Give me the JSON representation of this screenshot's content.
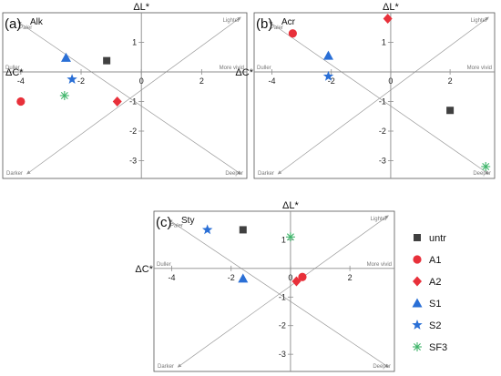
{
  "chart_data": [
    {
      "type": "scatter",
      "panel_label": "(a)",
      "title": "Alk",
      "xlabel": "ΔC*",
      "ylabel": "ΔL*",
      "xlim": [
        -4.6,
        3.5
      ],
      "ylim": [
        -3.6,
        2.0
      ],
      "x_ticks": [
        -4,
        -2,
        0,
        2
      ],
      "y_ticks": [
        -3,
        -2,
        -1,
        1
      ],
      "corner_labels": {
        "upper_left": "Paler",
        "upper_right": "Lighter",
        "left": "Duller",
        "right": "More vivid",
        "lower_left": "Darker",
        "lower_right": "Deeper"
      },
      "points": [
        {
          "series": "untr",
          "x": -1.15,
          "y": 0.38
        },
        {
          "series": "A1",
          "x": -4.0,
          "y": -1.0
        },
        {
          "series": "A2",
          "x": -0.8,
          "y": -1.0
        },
        {
          "series": "S1",
          "x": -2.5,
          "y": 0.48
        },
        {
          "series": "S2",
          "x": -2.3,
          "y": -0.25
        },
        {
          "series": "SF3",
          "x": -2.55,
          "y": -0.8
        }
      ]
    },
    {
      "type": "scatter",
      "panel_label": "(b)",
      "title": "Acr",
      "xlabel": "ΔC*",
      "ylabel": "ΔL*",
      "xlim": [
        -4.6,
        3.5
      ],
      "ylim": [
        -3.6,
        2.0
      ],
      "x_ticks": [
        -4,
        -2,
        0,
        2
      ],
      "y_ticks": [
        -3,
        -2,
        -1,
        1
      ],
      "corner_labels": {
        "upper_left": "Paler",
        "upper_right": "Lighter",
        "left": "Duller",
        "right": "More vivid",
        "lower_left": "Darker",
        "lower_right": "Deeper"
      },
      "points": [
        {
          "series": "untr",
          "x": 2.0,
          "y": -1.3
        },
        {
          "series": "A1",
          "x": -3.3,
          "y": 1.3
        },
        {
          "series": "A2",
          "x": -0.1,
          "y": 1.8
        },
        {
          "series": "S1",
          "x": -2.1,
          "y": 0.55
        },
        {
          "series": "S2",
          "x": -2.1,
          "y": -0.15
        },
        {
          "series": "SF3",
          "x": 3.2,
          "y": -3.2
        }
      ]
    },
    {
      "type": "scatter",
      "panel_label": "(c)",
      "title": "Sty",
      "xlabel": "ΔC*",
      "ylabel": "ΔL*",
      "xlim": [
        -4.6,
        3.5
      ],
      "ylim": [
        -3.6,
        2.0
      ],
      "x_ticks": [
        -4,
        -2,
        0,
        2
      ],
      "y_ticks": [
        -3,
        -2,
        -1,
        1
      ],
      "corner_labels": {
        "upper_left": "Paler",
        "upper_right": "Lighter",
        "left": "Duller",
        "right": "More vivid",
        "lower_left": "Darker",
        "lower_right": "Deeper"
      },
      "points": [
        {
          "series": "untr",
          "x": -1.6,
          "y": 1.35
        },
        {
          "series": "A1",
          "x": 0.4,
          "y": -0.3
        },
        {
          "series": "A2",
          "x": 0.2,
          "y": -0.45
        },
        {
          "series": "S1",
          "x": -1.6,
          "y": -0.35
        },
        {
          "series": "S2",
          "x": -2.8,
          "y": 1.35
        },
        {
          "series": "SF3",
          "x": 0.0,
          "y": 1.1
        }
      ]
    }
  ],
  "legend": [
    {
      "name": "untr",
      "marker": "square",
      "color": "#404040"
    },
    {
      "name": "A1",
      "marker": "circle",
      "color": "#e8303a"
    },
    {
      "name": "A2",
      "marker": "diamond",
      "color": "#e8303a"
    },
    {
      "name": "S1",
      "marker": "triangle",
      "color": "#2a6fd6"
    },
    {
      "name": "S2",
      "marker": "star",
      "color": "#2a6fd6"
    },
    {
      "name": "SF3",
      "marker": "asterisk",
      "color": "#3fb56a"
    }
  ],
  "colors": {
    "axis": "#8c8c8c",
    "frame": "#555555",
    "diagonal": "#9a9a9a"
  }
}
